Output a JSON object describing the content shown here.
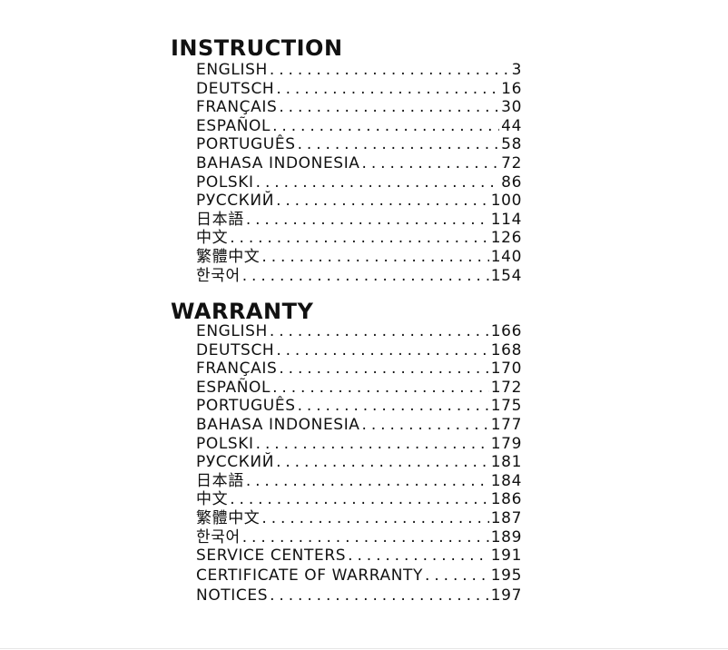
{
  "instruction": {
    "title": "INSTRUCTION",
    "entries": [
      {
        "label": "ENGLISH",
        "page": "3"
      },
      {
        "label": "DEUTSCH",
        "page": "16"
      },
      {
        "label": "FRANÇAIS",
        "page": "30"
      },
      {
        "label": "ESPAÑOL",
        "page": "44"
      },
      {
        "label": "PORTUGUÊS",
        "page": "58"
      },
      {
        "label": "BAHASA INDONESIA",
        "page": "72"
      },
      {
        "label": "POLSKI",
        "page": "86"
      },
      {
        "label": "РУССКИЙ",
        "page": "100"
      },
      {
        "label": "日本語",
        "page": "114"
      },
      {
        "label": "中文",
        "page": "126"
      },
      {
        "label": "繁體中文",
        "page": "140"
      },
      {
        "label": "한국어",
        "page": "154"
      }
    ]
  },
  "warranty": {
    "title": "WARRANTY",
    "entries": [
      {
        "label": "ENGLISH",
        "page": "166"
      },
      {
        "label": "DEUTSCH",
        "page": "168"
      },
      {
        "label": "FRANÇAIS",
        "page": "170"
      },
      {
        "label": "ESPAÑOL",
        "page": "172"
      },
      {
        "label": "PORTUGUÊS",
        "page": "175"
      },
      {
        "label": "BAHASA INDONESIA",
        "page": "177"
      },
      {
        "label": "POLSKI",
        "page": "179"
      },
      {
        "label": "РУССКИЙ",
        "page": "181"
      },
      {
        "label": "日本語",
        "page": "184"
      },
      {
        "label": "中文",
        "page": "186"
      },
      {
        "label": "繁體中文",
        "page": "187"
      },
      {
        "label": "한국어",
        "page": "189"
      },
      {
        "label": "SERVICE CENTERS",
        "page": "191"
      },
      {
        "label": "CERTIFICATE OF WARRANTY",
        "page": "195"
      },
      {
        "label": "NOTICES",
        "page": "197"
      }
    ]
  }
}
